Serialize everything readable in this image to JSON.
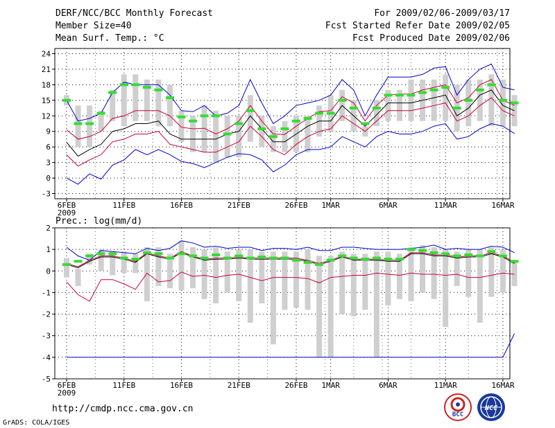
{
  "header": {
    "title": "DERF/NCC/BCC Monthly Forecast",
    "member_size": "Member Size=40",
    "variable": "Mean Surf. Temp.: °C",
    "forecast_period": "For 2009/02/06-2009/03/17",
    "start_date": "Fcst Started Refer Date 2009/02/05",
    "produced_date": "Fcst Produced Date 2009/02/06"
  },
  "footer": {
    "url": "http://cmdp.ncc.cma.gov.cn",
    "credit": "GrADS: COLA/IGES",
    "logo_left_text": "BCC",
    "logo_right_text": "NCC"
  },
  "colors": {
    "max_line": "#0000cc",
    "min_line": "#0000cc",
    "upper_line": "#cc0033",
    "lower_line": "#cc0033",
    "mean_line": "#000000",
    "box": "#cfcfcf",
    "observed": "#33dd33",
    "grid": "#000000"
  },
  "chart_data": [
    {
      "type": "line",
      "title": "Mean Surf. Temp.: °C",
      "xlabel": "",
      "ylabel": "°C",
      "ylim": [
        -4,
        25
      ],
      "yticks": [
        -3,
        0,
        3,
        6,
        9,
        12,
        15,
        18,
        21,
        24
      ],
      "x": [
        0,
        1,
        2,
        3,
        4,
        5,
        6,
        7,
        8,
        9,
        10,
        11,
        12,
        13,
        14,
        15,
        16,
        17,
        18,
        19,
        20,
        21,
        22,
        23,
        24,
        25,
        26,
        27,
        28,
        29,
        30,
        31,
        32,
        33,
        34,
        35,
        36,
        37,
        38,
        39
      ],
      "xticks": [
        {
          "day": 0,
          "label": "6FEB",
          "sub": "2009"
        },
        {
          "day": 5,
          "label": "11FEB"
        },
        {
          "day": 10,
          "label": "16FEB"
        },
        {
          "day": 15,
          "label": "21FEB"
        },
        {
          "day": 20,
          "label": "26FEB"
        },
        {
          "day": 23,
          "label": "1MAR"
        },
        {
          "day": 28,
          "label": "6MAR"
        },
        {
          "day": 33,
          "label": "11MAR"
        },
        {
          "day": 38,
          "label": "16MAR"
        }
      ],
      "series": [
        {
          "name": "max",
          "values": [
            15,
            11,
            11.5,
            12.5,
            16.5,
            18.5,
            18,
            18,
            18,
            16,
            13,
            12.8,
            14,
            12,
            12.5,
            14,
            19,
            14.5,
            10.5,
            12,
            14,
            14.5,
            15,
            16,
            19,
            17,
            12,
            16,
            19.5,
            19.5,
            19.5,
            20,
            21.2,
            21.5,
            16,
            19,
            21,
            22,
            17.5,
            17
          ]
        },
        {
          "name": "upper",
          "values": [
            9.3,
            7.5,
            8,
            9,
            11.5,
            12,
            13,
            13,
            13,
            12,
            9.8,
            9.5,
            9.6,
            8.5,
            9.5,
            11,
            14,
            11,
            8.5,
            8.4,
            10,
            11.5,
            12.8,
            13,
            15.7,
            14.5,
            11,
            14,
            16,
            16.2,
            16.2,
            17,
            17.5,
            18,
            14.5,
            15.5,
            18,
            19,
            15,
            14
          ]
        },
        {
          "name": "mean",
          "values": [
            6.9,
            4.2,
            5.5,
            6.5,
            9,
            9.5,
            10.5,
            10.5,
            11,
            8.5,
            7.5,
            7.5,
            7.5,
            7.5,
            8.5,
            9,
            12,
            9.5,
            7,
            7,
            8.5,
            10,
            11,
            11,
            14,
            12,
            10,
            12.2,
            14.5,
            14.5,
            14.5,
            15,
            15.5,
            16,
            12,
            13.5,
            16,
            17,
            14,
            13
          ]
        },
        {
          "name": "lower",
          "values": [
            4.5,
            2.3,
            3.5,
            4.5,
            7,
            7.5,
            8.5,
            8.5,
            9,
            6.5,
            6,
            5.5,
            5,
            5,
            6,
            7,
            10,
            8,
            5.5,
            4.5,
            6.5,
            8,
            9,
            9.5,
            12,
            10.5,
            9,
            11,
            13,
            13,
            13,
            13.5,
            14,
            14.5,
            11,
            12,
            14,
            15.5,
            13,
            12
          ]
        },
        {
          "name": "min",
          "values": [
            0,
            -1.2,
            0.8,
            -0.2,
            2.5,
            3.5,
            5.5,
            4.5,
            5.5,
            4.5,
            3.2,
            2.8,
            2,
            3,
            4,
            4.7,
            4.5,
            3.5,
            1.2,
            2.5,
            4.5,
            5.5,
            5.5,
            6,
            8,
            7,
            6,
            8,
            9,
            8.5,
            8.5,
            9,
            10,
            10.5,
            7.5,
            8,
            9.5,
            10.5,
            10,
            8.6
          ]
        },
        {
          "name": "box_high",
          "values": [
            16,
            14,
            14,
            13,
            17,
            20,
            20,
            19,
            19,
            18,
            13,
            12,
            14,
            13,
            12,
            12,
            16,
            12,
            10,
            11,
            12,
            12,
            14,
            16,
            17,
            15,
            10,
            15,
            17,
            17,
            19,
            19,
            19,
            20,
            18,
            19,
            19,
            20,
            19,
            16
          ]
        },
        {
          "name": "box_low",
          "values": [
            14,
            6,
            6,
            9,
            11,
            10,
            11,
            11,
            10,
            10,
            7,
            5,
            5,
            3,
            4,
            4,
            7,
            6,
            5,
            5,
            5,
            5,
            8,
            9,
            11,
            9,
            8,
            10,
            11,
            11,
            11,
            11,
            11,
            11,
            9,
            10,
            11,
            10,
            10,
            10
          ]
        },
        {
          "name": "observed",
          "values": [
            15,
            10.5,
            10.5,
            12.5,
            16.5,
            18,
            18,
            17.5,
            17,
            15.5,
            11.8,
            11,
            12,
            12,
            8.5,
            10.5,
            13,
            9.5,
            8,
            9.5,
            11,
            11.5,
            12.5,
            12.5,
            15,
            13.5,
            10.5,
            13.5,
            16,
            16,
            16,
            16.5,
            17,
            17.5,
            13.5,
            15,
            17,
            18,
            15,
            14.5
          ]
        }
      ]
    },
    {
      "type": "line",
      "title": "Prec.: log(mm/d)",
      "xlabel": "",
      "ylabel": "log(mm/d)",
      "ylim": [
        -5,
        2
      ],
      "yticks": [
        -5,
        -4,
        -3,
        -2,
        -1,
        0,
        1,
        2
      ],
      "x": [
        0,
        1,
        2,
        3,
        4,
        5,
        6,
        7,
        8,
        9,
        10,
        11,
        12,
        13,
        14,
        15,
        16,
        17,
        18,
        19,
        20,
        21,
        22,
        23,
        24,
        25,
        26,
        27,
        28,
        29,
        30,
        31,
        32,
        33,
        34,
        35,
        36,
        37,
        38,
        39
      ],
      "xticks": [
        {
          "day": 0,
          "label": "6FEB",
          "sub": "2009"
        },
        {
          "day": 5,
          "label": "11FEB"
        },
        {
          "day": 10,
          "label": "16FEB"
        },
        {
          "day": 15,
          "label": "21FEB"
        },
        {
          "day": 20,
          "label": "26FEB"
        },
        {
          "day": 23,
          "label": "1MAR"
        },
        {
          "day": 28,
          "label": "6MAR"
        },
        {
          "day": 33,
          "label": "11MAR"
        },
        {
          "day": 38,
          "label": "16MAR"
        }
      ],
      "series": [
        {
          "name": "max",
          "values": [
            1.1,
            0.7,
            0.5,
            0.95,
            0.9,
            0.85,
            0.8,
            1.05,
            0.95,
            1.05,
            1.4,
            1.3,
            1.1,
            1.15,
            1.05,
            1.1,
            1.1,
            0.95,
            1.05,
            1.05,
            1.0,
            1.1,
            0.95,
            0.95,
            1.1,
            1.1,
            1.05,
            1.0,
            1.0,
            1.0,
            1.05,
            1.1,
            1.2,
            1.0,
            1.05,
            1.0,
            1.0,
            1.15,
            1.1,
            0.85
          ]
        },
        {
          "name": "upper",
          "values": [
            0.35,
            0.2,
            0.5,
            0.7,
            0.7,
            0.6,
            0.45,
            0.85,
            0.7,
            0.6,
            0.9,
            0.7,
            0.55,
            0.6,
            0.6,
            0.65,
            0.6,
            0.6,
            0.6,
            0.6,
            0.6,
            0.5,
            0.35,
            0.5,
            0.7,
            0.55,
            0.55,
            0.55,
            0.5,
            0.5,
            0.85,
            0.85,
            0.75,
            0.75,
            0.65,
            0.7,
            0.7,
            0.85,
            0.7,
            0.4
          ]
        },
        {
          "name": "mean",
          "values": [
            0.3,
            0.15,
            0.45,
            0.65,
            0.65,
            0.55,
            0.4,
            0.8,
            0.65,
            0.55,
            0.85,
            0.65,
            0.5,
            0.55,
            0.55,
            0.6,
            0.55,
            0.55,
            0.55,
            0.55,
            0.55,
            0.45,
            0.3,
            0.45,
            0.65,
            0.5,
            0.5,
            0.5,
            0.45,
            0.45,
            0.8,
            0.8,
            0.7,
            0.7,
            0.6,
            0.65,
            0.65,
            0.8,
            0.65,
            0.35
          ]
        },
        {
          "name": "lower",
          "values": [
            -0.5,
            -1.1,
            -1.4,
            -0.4,
            -0.4,
            -0.6,
            -0.85,
            -0.1,
            -0.5,
            -0.45,
            -0.05,
            -0.25,
            -0.2,
            -0.3,
            -0.2,
            -0.15,
            -0.3,
            -0.45,
            -0.3,
            -0.3,
            -0.3,
            -0.35,
            -0.55,
            -0.3,
            -0.25,
            -0.2,
            -0.2,
            -0.1,
            -0.15,
            -0.2,
            -0.1,
            -0.15,
            -0.15,
            -0.2,
            -0.15,
            -0.3,
            -0.3,
            -0.2,
            -0.1,
            -0.15
          ]
        },
        {
          "name": "min",
          "values": [
            -4,
            -4,
            -4,
            -4,
            -4,
            -4,
            -4,
            -4,
            -4,
            -4,
            -4,
            -4,
            -4,
            -4,
            -4,
            -4,
            -4,
            -4,
            -4,
            -4,
            -4,
            -4,
            -4,
            -4,
            -4,
            -4,
            -4,
            -4,
            -4,
            -4,
            -4,
            -4,
            -4,
            -4,
            -4,
            -4,
            -4,
            -4,
            -4,
            -2.9
          ]
        },
        {
          "name": "box_high",
          "values": [
            0.6,
            0.1,
            0.8,
            1.0,
            0.9,
            0.9,
            0.8,
            1.1,
            1.1,
            0.8,
            1.4,
            1.1,
            1.0,
            1.1,
            0.9,
            1.0,
            1.0,
            0.9,
            0.9,
            0.9,
            0.9,
            1.0,
            0.7,
            0.7,
            0.9,
            0.8,
            0.8,
            0.9,
            0.9,
            0.8,
            1.1,
            1.2,
            1.1,
            1.0,
            0.9,
            1.0,
            1.0,
            1.1,
            1.0,
            0.5
          ]
        },
        {
          "name": "box_low",
          "values": [
            -0.3,
            -0.7,
            0.3,
            0,
            -0.2,
            -0.1,
            -0.1,
            -1.4,
            -0.7,
            -0.8,
            -0.9,
            -0.8,
            -1.3,
            -1.5,
            -1.0,
            -1.4,
            -2.4,
            -1.5,
            -3.4,
            -1.8,
            -1.7,
            -1.8,
            -4,
            -4,
            -2.0,
            -2.1,
            -1.8,
            -4,
            -1.6,
            -1.3,
            -1.4,
            -1.0,
            -1.3,
            -2.6,
            -0.7,
            -1.2,
            -2.4,
            -1.2,
            -1.0,
            -0.7
          ]
        },
        {
          "name": "observed",
          "values": [
            0.3,
            0.45,
            0.7,
            0.8,
            0.8,
            0.6,
            0.55,
            0.85,
            0.8,
            0.6,
            0.8,
            0.7,
            0.6,
            0.75,
            0.6,
            0.7,
            0.6,
            0.65,
            0.6,
            0.6,
            0.5,
            0.4,
            0.3,
            0.5,
            0.7,
            0.6,
            0.55,
            0.6,
            0.55,
            0.55,
            1.0,
            0.95,
            0.85,
            0.8,
            0.7,
            0.75,
            0.7,
            0.9,
            0.7,
            0.45
          ]
        }
      ]
    }
  ]
}
